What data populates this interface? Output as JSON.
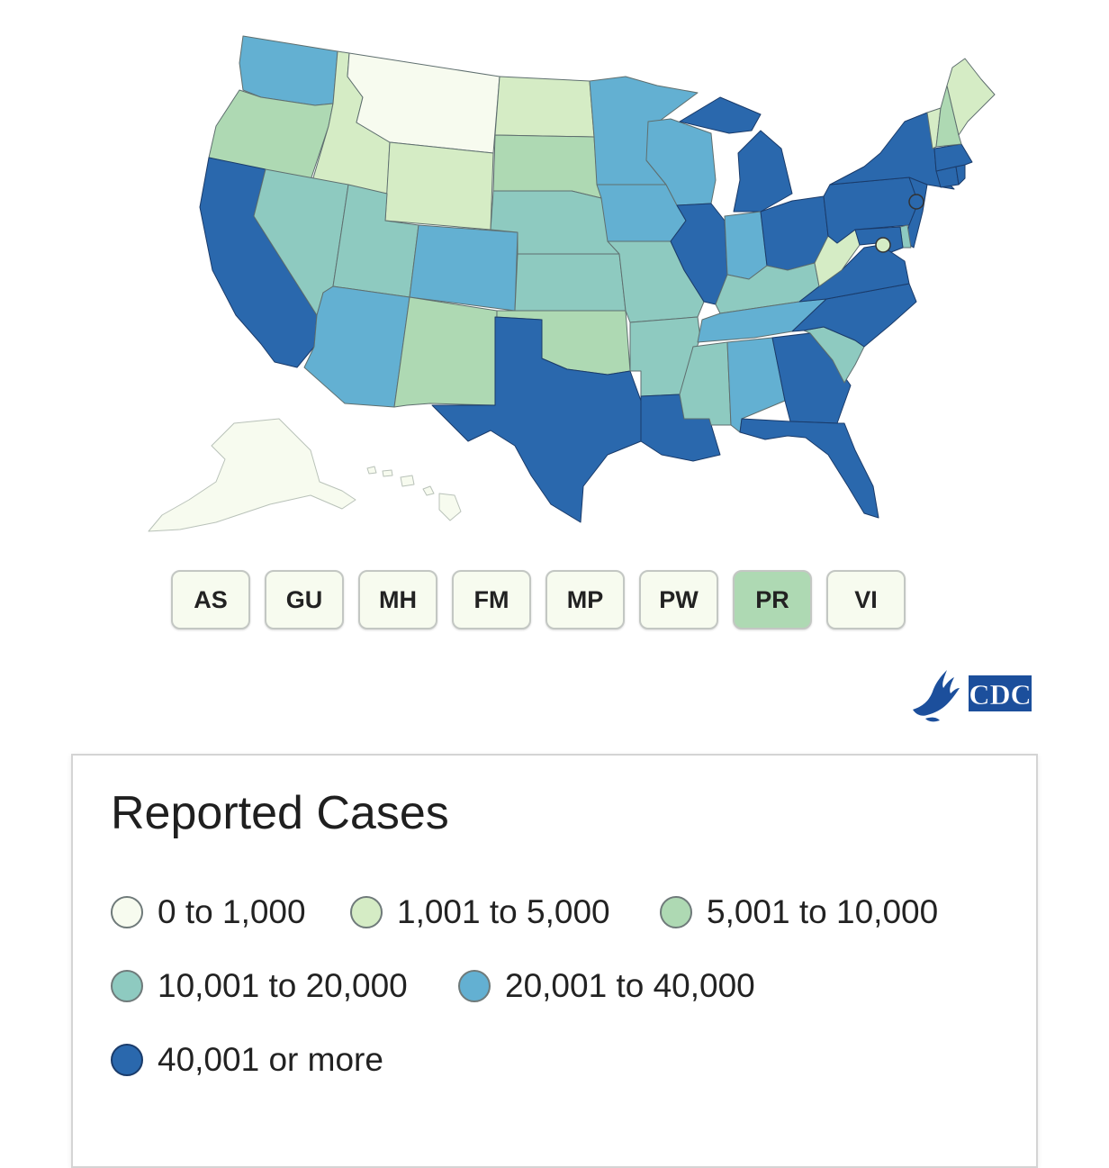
{
  "map": {
    "colors": {
      "c0": "#f7fbef",
      "c1": "#d5ecc5",
      "c2": "#aed9b3",
      "c3": "#8ecac0",
      "c4": "#63b0d2",
      "c5": "#2a68ad"
    },
    "states": [
      {
        "id": "WA",
        "class": "c4"
      },
      {
        "id": "OR",
        "class": "c2"
      },
      {
        "id": "CA",
        "class": "c5"
      },
      {
        "id": "ID",
        "class": "c1"
      },
      {
        "id": "NV",
        "class": "c3"
      },
      {
        "id": "MT",
        "class": "c0"
      },
      {
        "id": "WY",
        "class": "c1"
      },
      {
        "id": "UT",
        "class": "c3"
      },
      {
        "id": "AZ",
        "class": "c4"
      },
      {
        "id": "CO",
        "class": "c4"
      },
      {
        "id": "NM",
        "class": "c2"
      },
      {
        "id": "ND",
        "class": "c1"
      },
      {
        "id": "SD",
        "class": "c2"
      },
      {
        "id": "NE",
        "class": "c3"
      },
      {
        "id": "KS",
        "class": "c3"
      },
      {
        "id": "OK",
        "class": "c2"
      },
      {
        "id": "TX",
        "class": "c5"
      },
      {
        "id": "MN",
        "class": "c4"
      },
      {
        "id": "IA",
        "class": "c4"
      },
      {
        "id": "MO",
        "class": "c3"
      },
      {
        "id": "AR",
        "class": "c3"
      },
      {
        "id": "LA",
        "class": "c5"
      },
      {
        "id": "WI",
        "class": "c4"
      },
      {
        "id": "IL",
        "class": "c5"
      },
      {
        "id": "MI",
        "class": "c5"
      },
      {
        "id": "IN",
        "class": "c4"
      },
      {
        "id": "OH",
        "class": "c5"
      },
      {
        "id": "KY",
        "class": "c3"
      },
      {
        "id": "TN",
        "class": "c4"
      },
      {
        "id": "MS",
        "class": "c3"
      },
      {
        "id": "AL",
        "class": "c4"
      },
      {
        "id": "GA",
        "class": "c5"
      },
      {
        "id": "FL",
        "class": "c5"
      },
      {
        "id": "SC",
        "class": "c3"
      },
      {
        "id": "NC",
        "class": "c5"
      },
      {
        "id": "VA",
        "class": "c5"
      },
      {
        "id": "WV",
        "class": "c1"
      },
      {
        "id": "PA",
        "class": "c5"
      },
      {
        "id": "NY",
        "class": "c5"
      },
      {
        "id": "NJ",
        "class": "c5"
      },
      {
        "id": "DE",
        "class": "c3"
      },
      {
        "id": "MD",
        "class": "c5"
      },
      {
        "id": "DC",
        "class": "c1"
      },
      {
        "id": "CT",
        "class": "c5"
      },
      {
        "id": "RI",
        "class": "c5"
      },
      {
        "id": "MA",
        "class": "c5"
      },
      {
        "id": "VT",
        "class": "c1"
      },
      {
        "id": "NH",
        "class": "c2"
      },
      {
        "id": "ME",
        "class": "c1"
      },
      {
        "id": "AK",
        "class": "c0"
      },
      {
        "id": "HI",
        "class": "c0"
      }
    ]
  },
  "territories": [
    {
      "code": "AS",
      "class": "c0"
    },
    {
      "code": "GU",
      "class": "c0"
    },
    {
      "code": "MH",
      "class": "c0"
    },
    {
      "code": "FM",
      "class": "c0"
    },
    {
      "code": "MP",
      "class": "c0"
    },
    {
      "code": "PW",
      "class": "c0"
    },
    {
      "code": "PR",
      "class": "c2"
    },
    {
      "code": "VI",
      "class": "c0"
    }
  ],
  "logo": {
    "text": "CDC",
    "brand_color": "#1c4f9c"
  },
  "legend": {
    "title": "Reported Cases",
    "items": [
      {
        "label": "0 to 1,000",
        "class": "c0"
      },
      {
        "label": "1,001 to 5,000",
        "class": "c1"
      },
      {
        "label": "5,001 to 10,000",
        "class": "c2"
      },
      {
        "label": "10,001 to 20,000",
        "class": "c3"
      },
      {
        "label": "20,001 to 40,000",
        "class": "c4"
      },
      {
        "label": "40,001 or more",
        "class": "c5"
      }
    ]
  }
}
